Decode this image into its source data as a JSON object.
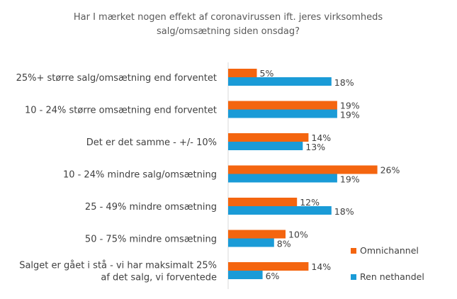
{
  "chart_data": {
    "type": "bar",
    "orientation": "horizontal",
    "title_lines": [
      "Har I mærket nogen effekt af coronavirussen ift. jeres virksomheds",
      "salg/omsætning siden onsdag?"
    ],
    "categories": [
      [
        "25%+ større salg/omsætning end forventet"
      ],
      [
        "10 - 24% større omsætning end forventet"
      ],
      [
        "Det er det samme - +/- 10%"
      ],
      [
        "10 - 24% mindre salg/omsætning"
      ],
      [
        "25 - 49% mindre omsætning"
      ],
      [
        "50 - 75% mindre omsætning"
      ],
      [
        "Salget er gået i stå - vi har maksimalt 25%",
        "af det salg, vi forventede"
      ]
    ],
    "series": [
      {
        "name": "Omnichannel",
        "color": "#F4650F",
        "values": [
          5,
          19,
          14,
          26,
          12,
          10,
          14
        ],
        "labels": [
          "5%",
          "19%",
          "14%",
          "26%",
          "12%",
          "10%",
          "14%"
        ]
      },
      {
        "name": "Ren nethandel",
        "color": "#1A9BD7",
        "values": [
          18,
          19,
          13,
          19,
          18,
          8,
          6
        ],
        "labels": [
          "18%",
          "19%",
          "13%",
          "19%",
          "18%",
          "8%",
          "6%"
        ]
      }
    ],
    "value_axis": {
      "min": 0,
      "max": 30,
      "visible": false
    },
    "grid": false,
    "legend_position": "bottom-right"
  }
}
